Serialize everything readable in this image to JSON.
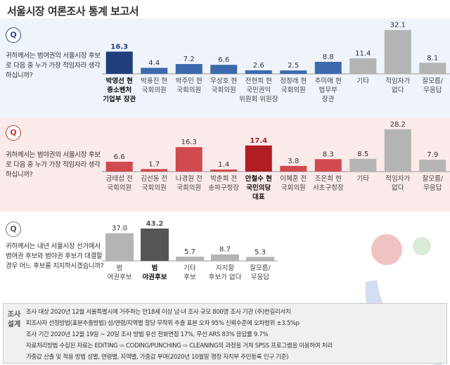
{
  "page_title": "서울시장 여론조사 통계 보고서",
  "q_badge": "Q",
  "questions": [
    "귀하께서는 범여권의 서울시장 후보로 다음 중 누가 가장 적임자라 생각하십니까?",
    "귀하께서는 범야권의 서울시장 후보로 다음 중 누가 가장 적임자라 생각하십니까?",
    "귀하께서는 내년 서울시장 선거에서 범여권 후보와 범야권 후보가 대결할 경우 어느 후보를 지지하시겠습니까?"
  ],
  "colors": {
    "highlight_blue": "#1f3f7a",
    "blue": "#3d6aad",
    "highlight_red": "#b01e23",
    "red": "#d04a4f",
    "gray": "#b4b4b4",
    "dark_gray": "#555555"
  },
  "chart_data": [
    {
      "type": "bar",
      "categories": [
        [
          "박영선 현",
          "중소벤처",
          "기업부 장관"
        ],
        [
          "박용진 현",
          "국회의원"
        ],
        [
          "박주민 현",
          "국회의원"
        ],
        [
          "우상호 현",
          "국회의원"
        ],
        [
          "전현희 현",
          "국민권익",
          "위원회 위원장"
        ],
        [
          "정청래 현",
          "국회의원"
        ],
        [
          "추미애 현",
          "법무부",
          "장관"
        ],
        [
          "기타"
        ],
        [
          "적임자가",
          "없다"
        ],
        [
          "잘모름/",
          "무응답"
        ]
      ],
      "values": [
        16.3,
        4.4,
        7.2,
        6.6,
        2.6,
        2.5,
        8.8,
        11.4,
        32.1,
        8.1
      ],
      "ylim": [
        0,
        34
      ]
    },
    {
      "type": "bar",
      "categories": [
        [
          "금태섭 전",
          "국회의원"
        ],
        [
          "김선동 전",
          "국회의원"
        ],
        [
          "나경원 전",
          "국회의원"
        ],
        [
          "박춘희 전",
          "송파구청장"
        ],
        [
          "안철수 현",
          "국민의당",
          "대표"
        ],
        [
          "이혜훈 전",
          "국회의원"
        ],
        [
          "조은희 현",
          "서초구청장"
        ],
        [
          "기타"
        ],
        [
          "적임자가",
          "없다"
        ],
        [
          "잘모름/",
          "무응답"
        ]
      ],
      "values": [
        6.6,
        1.7,
        16.3,
        1.4,
        17.4,
        3.8,
        8.3,
        8.5,
        28.2,
        7.9
      ],
      "ylim": [
        0,
        30
      ]
    },
    {
      "type": "bar",
      "categories": [
        [
          "범",
          "여권후보"
        ],
        [
          "범",
          "야권후보"
        ],
        [
          "기타",
          "후보"
        ],
        [
          "지지할",
          "후보가 없다"
        ],
        [
          "잘모름/",
          "무응답"
        ]
      ],
      "values": [
        37.0,
        43.2,
        5.7,
        8.7,
        5.3
      ],
      "ylim": [
        0,
        46
      ]
    }
  ],
  "method_title": "조사 설계",
  "method_lines": [
    "조사 대상  2020년 12월 서울특별시에 거주하는 만18세 이상 남·녀     조사 규모  800명     조사 기관  (주)한길리서치",
    "피조사자 선정방법(표본추출방법)  성/연령/지역별 할당 무작위 추출     표본 오차  95% 신뢰수준에 오차범위 ±3.5%p",
    "조사 기간  2020년 12월 19일 ~ 20일     조사 방법  유선 전화면접 17%, 무선 ARS 83%     응답률  9.7%",
    "자료처리방법  수집된 자료는 EDITING ⇨ CODING/PUNCHING ⇨ CLEANING의 과정을 거쳐 SPSS 프로그램을 이용하여 처리",
    "가중값 산출 및 적용 방법  성별, 연령별, 지역별, 가중값 부여(2020년 10월말 행정 자치부 주민등록 인구 기준)"
  ]
}
